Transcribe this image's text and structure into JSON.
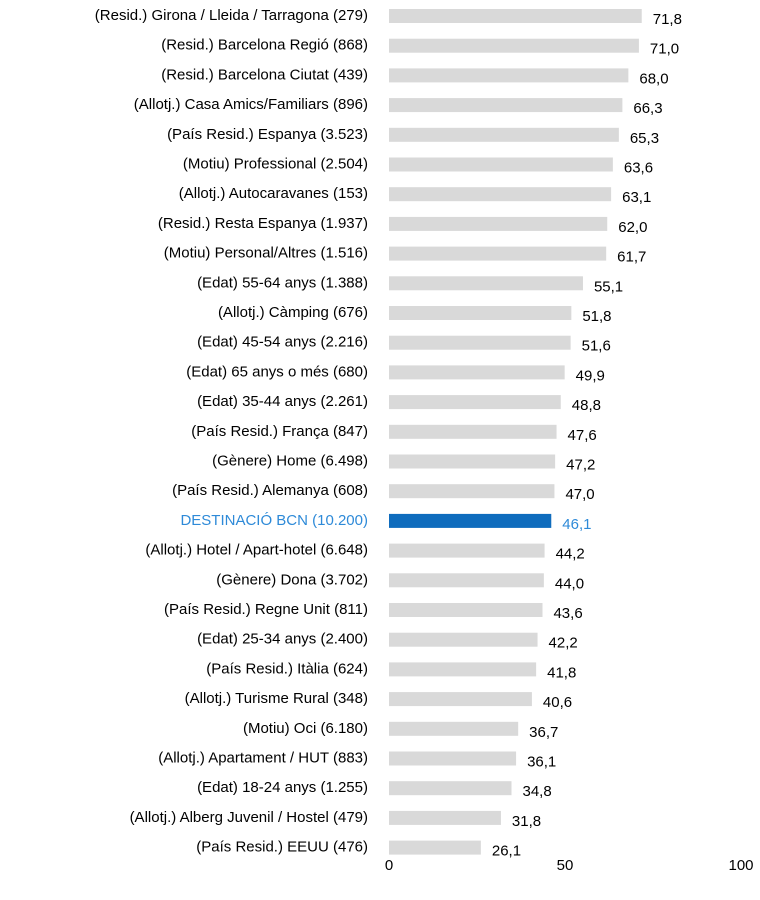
{
  "chart_data": {
    "type": "hbar",
    "categories": [
      "(Resid.) Girona / Lleida / Tarragona (279)",
      "(Resid.) Barcelona Regió (868)",
      "(Resid.) Barcelona Ciutat (439)",
      "(Allotj.) Casa Amics/Familiars (896)",
      "(País Resid.) Espanya (3.523)",
      "(Motiu) Professional (2.504)",
      "(Allotj.) Autocaravanes (153)",
      "(Resid.) Resta Espanya (1.937)",
      "(Motiu) Personal/Altres (1.516)",
      "(Edat) 55-64 anys (1.388)",
      "(Allotj.) Càmping (676)",
      "(Edat) 45-54 anys (2.216)",
      "(Edat) 65 anys o més (680)",
      "(Edat) 35-44 anys (2.261)",
      "(País Resid.) França (847)",
      "(Gènere) Home (6.498)",
      "(País Resid.) Alemanya (608)",
      "DESTINACIÓ BCN (10.200)",
      "(Allotj.) Hotel / Apart-hotel (6.648)",
      "(Gènere) Dona (3.702)",
      "(País Resid.) Regne Unit (811)",
      "(Edat) 25-34 anys  (2.400)",
      "(País Resid.) Itàlia (624)",
      "(Allotj.) Turisme Rural (348)",
      "(Motiu) Oci (6.180)",
      "(Allotj.) Apartament / HUT (883)",
      "(Edat) 18-24 anys (1.255)",
      "(Allotj.) Alberg Juvenil / Hostel  (479)",
      "(País Resid.) EEUU (476)"
    ],
    "values": [
      71.8,
      71.0,
      68.0,
      66.3,
      65.3,
      63.6,
      63.1,
      62.0,
      61.7,
      55.1,
      51.8,
      51.6,
      49.9,
      48.8,
      47.6,
      47.2,
      47.0,
      46.1,
      44.2,
      44.0,
      43.6,
      42.2,
      41.8,
      40.6,
      36.7,
      36.1,
      34.8,
      31.8,
      26.1
    ],
    "value_labels": [
      "71,8",
      "71,0",
      "68,0",
      "66,3",
      "65,3",
      "63,6",
      "63,1",
      "62,0",
      "61,7",
      "55,1",
      "51,8",
      "51,6",
      "49,9",
      "48,8",
      "47,6",
      "47,2",
      "47,0",
      "46,1",
      "44,2",
      "44,0",
      "43,6",
      "42,2",
      "41,8",
      "40,6",
      "36,7",
      "36,1",
      "34,8",
      "31,8",
      "26,1"
    ],
    "color": "#d9d9d9",
    "highlight": {
      "index": 17,
      "color": "#0f6cbd",
      "text_color": "#2e8ad8"
    },
    "xlim": [
      0,
      100
    ],
    "xticks": [
      0,
      50,
      100
    ],
    "grid": false
  }
}
